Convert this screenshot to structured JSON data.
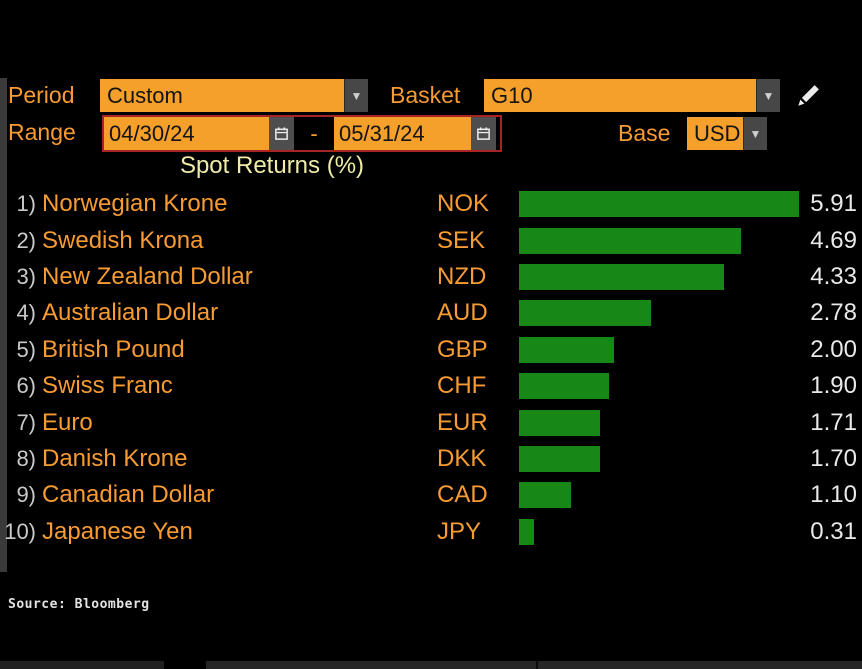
{
  "header": {
    "period_label": "Period",
    "period_value": "Custom",
    "basket_label": "Basket",
    "basket_value": "G10",
    "range_label": "Range",
    "range_start": "04/30/24",
    "range_separator": "-",
    "range_end": "05/31/24",
    "base_label": "Base",
    "base_value": "USD"
  },
  "source": "Source: Bloomberg",
  "colors": {
    "accent_orange": "#f5a02b",
    "text_orange": "#f79b33",
    "bar_green": "#178717",
    "title_yellow": "#efeca8",
    "value_white": "#e9e9e9",
    "number_grey": "#c9c9c9"
  },
  "chart_data": {
    "type": "bar",
    "orientation": "horizontal",
    "title": "Spot Returns (%)",
    "xlim": [
      0,
      5.91
    ],
    "max_value": 5.91,
    "value_format": "0.00",
    "grid": false,
    "legend": false,
    "rows": [
      {
        "rank": "1)",
        "name": "Norwegian Krone",
        "code": "NOK",
        "value": 5.91
      },
      {
        "rank": "2)",
        "name": "Swedish Krona",
        "code": "SEK",
        "value": 4.69
      },
      {
        "rank": "3)",
        "name": "New Zealand Dollar",
        "code": "NZD",
        "value": 4.33
      },
      {
        "rank": "4)",
        "name": "Australian Dollar",
        "code": "AUD",
        "value": 2.78
      },
      {
        "rank": "5)",
        "name": "British Pound",
        "code": "GBP",
        "value": 2.0
      },
      {
        "rank": "6)",
        "name": "Swiss Franc",
        "code": "CHF",
        "value": 1.9
      },
      {
        "rank": "7)",
        "name": "Euro",
        "code": "EUR",
        "value": 1.71
      },
      {
        "rank": "8)",
        "name": "Danish Krone",
        "code": "DKK",
        "value": 1.7
      },
      {
        "rank": "9)",
        "name": "Canadian Dollar",
        "code": "CAD",
        "value": 1.1
      },
      {
        "rank": "10)",
        "name": "Japanese Yen",
        "code": "JPY",
        "value": 0.31
      }
    ]
  }
}
